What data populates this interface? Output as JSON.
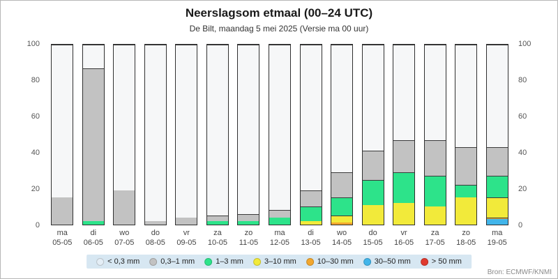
{
  "header": {
    "title": "Neerslagsom etmaal (00–24 UTC)",
    "subtitle": "De Bilt, maandag 5 mei 2025 (Versie ma 00 uur)"
  },
  "source": "Bron: ECMWF/KNMI",
  "chart_data": {
    "type": "bar",
    "stacked": true,
    "title": "Neerslagsom etmaal (00–24 UTC)",
    "subtitle": "De Bilt, maandag 5 mei 2025 (Versie ma 00 uur)",
    "ylim": [
      0,
      100
    ],
    "yticks": [
      0,
      20,
      40,
      60,
      80,
      100
    ],
    "grid": false,
    "legend_position": "bottom",
    "categories": [
      {
        "day": "ma",
        "date": "05-05"
      },
      {
        "day": "di",
        "date": "06-05"
      },
      {
        "day": "wo",
        "date": "07-05"
      },
      {
        "day": "do",
        "date": "08-05"
      },
      {
        "day": "vr",
        "date": "09-05"
      },
      {
        "day": "za",
        "date": "10-05"
      },
      {
        "day": "zo",
        "date": "11-05"
      },
      {
        "day": "ma",
        "date": "12-05"
      },
      {
        "day": "di",
        "date": "13-05"
      },
      {
        "day": "wo",
        "date": "14-05"
      },
      {
        "day": "do",
        "date": "15-05"
      },
      {
        "day": "vr",
        "date": "16-05"
      },
      {
        "day": "za",
        "date": "17-05"
      },
      {
        "day": "zo",
        "date": "18-05"
      },
      {
        "day": "ma",
        "date": "19-05"
      }
    ],
    "series": [
      {
        "name": "> 50 mm",
        "color": "#e03a2f",
        "values": [
          0,
          0,
          0,
          0,
          0,
          0,
          0,
          0,
          0,
          0,
          0,
          0,
          0,
          0,
          0
        ]
      },
      {
        "name": "30–50 mm",
        "color": "#41b5ea",
        "values": [
          0,
          0,
          0,
          0,
          0,
          0,
          0,
          0,
          0,
          0,
          0,
          0,
          0,
          0,
          3
        ]
      },
      {
        "name": "10–30 mm",
        "color": "#f2a72e",
        "values": [
          0,
          0,
          0,
          0,
          0,
          0,
          0,
          0,
          0,
          1,
          0,
          0,
          0,
          0,
          1
        ]
      },
      {
        "name": "3–10 mm",
        "color": "#f2ea3a",
        "values": [
          0,
          0,
          0,
          0,
          0,
          0,
          0,
          0,
          2,
          4,
          11,
          12,
          10,
          15,
          11
        ]
      },
      {
        "name": "1–3 mm",
        "color": "#2de38a",
        "values": [
          0,
          2,
          0,
          0,
          0,
          2,
          2,
          4,
          8,
          10,
          14,
          17,
          17,
          7,
          12
        ]
      },
      {
        "name": "0,3–1 mm",
        "color": "#c2c2c2",
        "values": [
          15,
          85,
          19,
          2,
          4,
          3,
          4,
          4,
          9,
          14,
          16,
          18,
          20,
          21,
          16
        ]
      },
      {
        "name": "< 0,3 mm",
        "color": "#f6f7f8",
        "values": [
          85,
          13,
          81,
          98,
          96,
          95,
          94,
          92,
          81,
          71,
          59,
          53,
          53,
          57,
          57
        ]
      }
    ],
    "legend": [
      {
        "label": "< 0,3 mm",
        "color": "#e4eef6"
      },
      {
        "label": "0,3–1 mm",
        "color": "#c2c2c2"
      },
      {
        "label": "1–3 mm",
        "color": "#2de38a"
      },
      {
        "label": "3–10 mm",
        "color": "#f2ea3a"
      },
      {
        "label": "10–30 mm",
        "color": "#f2a72e"
      },
      {
        "label": "30–50 mm",
        "color": "#41b5ea"
      },
      {
        "label": "> 50 mm",
        "color": "#e03a2f"
      }
    ]
  }
}
